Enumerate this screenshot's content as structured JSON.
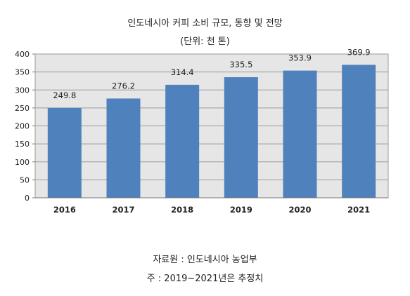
{
  "chart_data": {
    "type": "bar",
    "title": "인도네시아 커피 소비 규모, 동향 및 전망",
    "subtitle": "(단위: 천 톤)",
    "categories": [
      "2016",
      "2017",
      "2018",
      "2019",
      "2020",
      "2021"
    ],
    "values": [
      249.8,
      276.2,
      314.4,
      335.5,
      353.9,
      369.9
    ],
    "value_labels": [
      "249.8",
      "276.2",
      "314.4",
      "335.5",
      "353.9",
      "369.9"
    ],
    "ylim": [
      0,
      400
    ],
    "yticks": [
      0,
      50,
      100,
      150,
      200,
      250,
      300,
      350,
      400
    ],
    "grid": true,
    "bar_color": "#4f81bd",
    "plot_background": "#e6e6e6"
  },
  "notes": {
    "source": "자료원 : 인도네시아 농업부",
    "footnote": "주 : 2019~2021년은 추정치"
  }
}
